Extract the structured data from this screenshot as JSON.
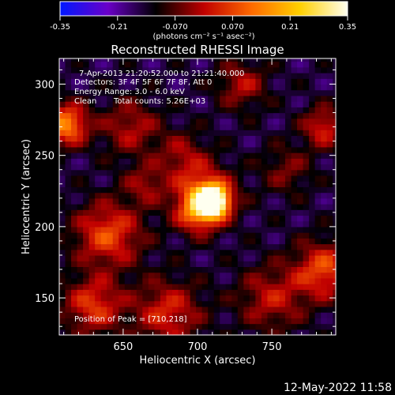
{
  "colorbar": {
    "ticks": [
      "-0.35",
      "-0.21",
      "-0.070",
      "0.070",
      "0.21",
      "0.35"
    ],
    "units_label": "(photons cm⁻² s⁻¹ asec⁻²)",
    "range": [
      -0.35,
      0.35
    ],
    "colormap": [
      "#0018ff",
      "#6a00c8",
      "#000000",
      "#c00000",
      "#ff6a00",
      "#ffd000",
      "#fffff0"
    ]
  },
  "chart_data": {
    "type": "heatmap",
    "title": "Reconstructed RHESSI Image",
    "xlabel": "Heliocentric X (arcsec)",
    "ylabel": "Heliocentric Y (arcsec)",
    "xlim": [
      607,
      793
    ],
    "ylim": [
      124,
      318
    ],
    "xticks": [
      "650",
      "700",
      "750"
    ],
    "xtick_values": [
      650,
      700,
      750
    ],
    "yticks": [
      "150",
      "200",
      "250",
      "300"
    ],
    "ytick_values": [
      150,
      200,
      250,
      300
    ],
    "peak": [
      710,
      218
    ],
    "peak_value": 0.35,
    "background_level": -0.15,
    "blobs": [
      {
        "x": 710,
        "y": 218,
        "amp": 0.55,
        "r": 7
      },
      {
        "x": 705,
        "y": 222,
        "amp": 0.25,
        "r": 14
      },
      {
        "x": 700,
        "y": 210,
        "amp": 0.18,
        "r": 10
      },
      {
        "x": 640,
        "y": 195,
        "amp": 0.22,
        "r": 16
      },
      {
        "x": 612,
        "y": 272,
        "amp": 0.3,
        "r": 10
      },
      {
        "x": 655,
        "y": 270,
        "amp": 0.14,
        "r": 14
      },
      {
        "x": 690,
        "y": 250,
        "amp": 0.12,
        "r": 12
      },
      {
        "x": 750,
        "y": 150,
        "amp": 0.15,
        "r": 16
      },
      {
        "x": 785,
        "y": 170,
        "amp": 0.22,
        "r": 14
      },
      {
        "x": 630,
        "y": 145,
        "amp": 0.2,
        "r": 14
      },
      {
        "x": 680,
        "y": 140,
        "amp": 0.18,
        "r": 16
      },
      {
        "x": 785,
        "y": 270,
        "amp": 0.18,
        "r": 10
      },
      {
        "x": 730,
        "y": 300,
        "amp": 0.14,
        "r": 12
      },
      {
        "x": 665,
        "y": 230,
        "amp": 0.12,
        "r": 10
      },
      {
        "x": 760,
        "y": 240,
        "amp": 0.1,
        "r": 12
      }
    ],
    "info": {
      "time_range": "7-Apr-2013 21:20:52.000 to 21:21:40.000",
      "detectors": "Detectors: 3F 4F 5F 6F 7F 8F, Att 0",
      "energy": "Energy Range: 3.0 - 6.0 keV",
      "algorithm": "Clean",
      "counts": "Total counts: 5.26E+03",
      "peak_label": "Position of Peak = [710,218]"
    }
  },
  "footer_date": "12-May-2022 11:58"
}
